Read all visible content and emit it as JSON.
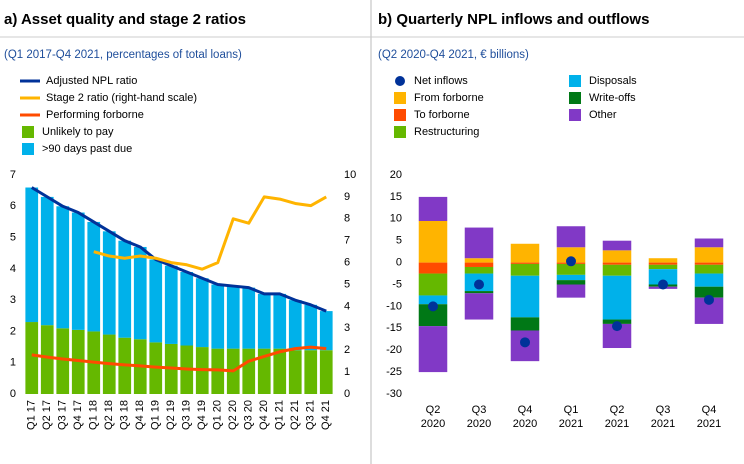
{
  "chart_data": [
    {
      "type": "bar",
      "stacked": true,
      "title": "a) Asset quality and stage 2 ratios",
      "subtitle": "(Q1 2017-Q4 2021, percentages of total loans)",
      "categories": [
        "Q1 17",
        "Q2 17",
        "Q3 17",
        "Q4 17",
        "Q1 18",
        "Q2 18",
        "Q3 18",
        "Q4 18",
        "Q1 19",
        "Q2 19",
        "Q3 19",
        "Q4 19",
        "Q1 20",
        "Q2 20",
        "Q3 20",
        "Q4 20",
        "Q1 21",
        "Q2 21",
        "Q3 21",
        "Q4 21"
      ],
      "series": [
        {
          "name": "Adjusted NPL ratio",
          "type": "line",
          "color": "#003299",
          "values": [
            6.6,
            6.3,
            6.0,
            5.8,
            5.5,
            5.2,
            4.9,
            4.7,
            4.3,
            4.1,
            3.9,
            3.7,
            3.5,
            3.45,
            3.4,
            3.2,
            3.2,
            3.0,
            2.85,
            2.65
          ]
        },
        {
          "name": "Stage 2 ratio (right-hand scale)",
          "type": "line",
          "axis": "y2",
          "color": "#ffb400",
          "values": [
            null,
            null,
            null,
            null,
            6.5,
            6.3,
            6.2,
            6.3,
            6.2,
            6.0,
            5.9,
            5.7,
            6.0,
            8.0,
            7.8,
            9.0,
            8.9,
            8.7,
            8.6,
            9.0
          ]
        },
        {
          "name": "Performing forborne",
          "type": "line",
          "color": "#ff4b00",
          "values": [
            1.25,
            1.18,
            1.12,
            1.07,
            1.02,
            0.97,
            0.93,
            0.9,
            0.86,
            0.83,
            0.8,
            0.78,
            0.77,
            0.74,
            1.05,
            1.2,
            1.35,
            1.45,
            1.5,
            1.45
          ]
        },
        {
          "name": "Unlikely to pay",
          "type": "bar",
          "color": "#65b800",
          "values": [
            2.3,
            2.2,
            2.1,
            2.05,
            2.0,
            1.9,
            1.8,
            1.75,
            1.65,
            1.6,
            1.55,
            1.5,
            1.45,
            1.45,
            1.45,
            1.45,
            1.45,
            1.4,
            1.4,
            1.4
          ]
        },
        {
          "name": ">90 days past due",
          "type": "bar",
          "color": "#00b1ea",
          "values": [
            4.3,
            4.1,
            3.9,
            3.75,
            3.5,
            3.3,
            3.1,
            2.95,
            2.65,
            2.5,
            2.35,
            2.2,
            2.05,
            2.0,
            1.95,
            1.75,
            1.75,
            1.6,
            1.45,
            1.25
          ]
        }
      ],
      "ylim": [
        0,
        7
      ],
      "yticks": [
        0,
        1,
        2,
        3,
        4,
        5,
        6,
        7
      ],
      "y2lim": [
        0,
        10
      ],
      "y2ticks": [
        0,
        1,
        2,
        3,
        4,
        5,
        6,
        7,
        8,
        9,
        10
      ],
      "grid": false
    },
    {
      "type": "bar",
      "stacked": true,
      "title": "b) Quarterly NPL inflows and outflows",
      "subtitle": "(Q2 2020-Q4 2021, € billions)",
      "categories": [
        [
          "Q2",
          "2020"
        ],
        [
          "Q3",
          "2020"
        ],
        [
          "Q4",
          "2020"
        ],
        [
          "Q1",
          "2021"
        ],
        [
          "Q2",
          "2021"
        ],
        [
          "Q3",
          "2021"
        ],
        [
          "Q4",
          "2021"
        ]
      ],
      "series": [
        {
          "name": "Net inflows",
          "type": "scatter",
          "color": "#003299",
          "values": [
            -10,
            -5,
            -18.2,
            0.3,
            -14.5,
            -5,
            -8.5
          ]
        },
        {
          "name": "From forborne",
          "type": "bar",
          "color": "#ffb400",
          "values": [
            9.5,
            1,
            4.3,
            3.5,
            2.8,
            1,
            3.5
          ]
        },
        {
          "name": "To forborne",
          "type": "bar",
          "color": "#ff4b00",
          "values": [
            -2.5,
            -1,
            -0.3,
            -0.3,
            -0.5,
            -0.5,
            -0.5
          ]
        },
        {
          "name": "Restructuring",
          "type": "bar",
          "color": "#65b800",
          "values": [
            -5,
            -1.5,
            -2.7,
            -2.5,
            -2.5,
            -1,
            -2
          ]
        },
        {
          "name": "Disposals",
          "type": "bar",
          "color": "#00b1ea",
          "values": [
            -2,
            -4,
            -9.5,
            -1.2,
            -10,
            -3.5,
            -3
          ]
        },
        {
          "name": "Write-offs",
          "type": "bar",
          "color": "#007816",
          "values": [
            -5,
            -0.5,
            -3,
            -1,
            -1,
            -0.5,
            -2.5
          ]
        },
        {
          "name": "Other",
          "type": "bar",
          "color": "#8139c6",
          "values": [
            5.5,
            7,
            0,
            4.8,
            2.2,
            0,
            2
          ]
        },
        {
          "name": "Other",
          "type": "bar",
          "color": "#8139c6",
          "values": [
            -10.5,
            -6,
            -7,
            -3,
            -5.5,
            -0.5,
            -6
          ]
        }
      ],
      "ylim": [
        -30,
        20
      ],
      "yticks": [
        -30,
        -25,
        -20,
        -15,
        -10,
        -5,
        0,
        5,
        10,
        15,
        20
      ],
      "grid": false
    }
  ]
}
